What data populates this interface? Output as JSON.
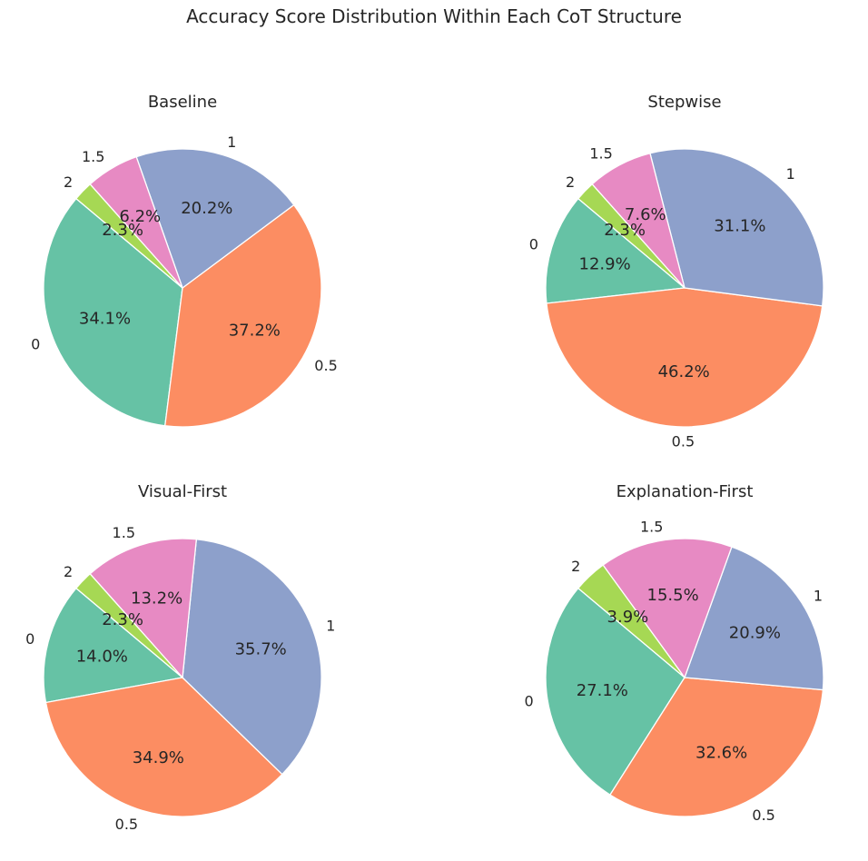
{
  "figure": {
    "title": "Accuracy Score Distribution Within Each CoT Structure"
  },
  "colors": {
    "0": "#66c2a5",
    "0.5": "#fc8d62",
    "1": "#8da0cb",
    "1.5": "#e78ac3",
    "2": "#a6d854"
  },
  "chart_data": [
    {
      "type": "pie",
      "title": "Baseline",
      "labels": [
        "0",
        "0.5",
        "1",
        "1.5",
        "2"
      ],
      "values": [
        34.1,
        37.2,
        20.2,
        6.2,
        2.3
      ],
      "value_labels": [
        "34.1%",
        "37.2%",
        "20.2%",
        "6.2%",
        "2.3%"
      ],
      "start_angle": 140
    },
    {
      "type": "pie",
      "title": "Stepwise",
      "labels": [
        "0",
        "0.5",
        "1",
        "1.5",
        "2"
      ],
      "values": [
        12.9,
        46.2,
        31.1,
        7.6,
        2.3
      ],
      "value_labels": [
        "12.9%",
        "46.2%",
        "31.1%",
        "7.6%",
        "2.3%"
      ],
      "start_angle": 140
    },
    {
      "type": "pie",
      "title": "Visual-First",
      "labels": [
        "0",
        "0.5",
        "1",
        "1.5",
        "2"
      ],
      "values": [
        14.0,
        34.9,
        35.7,
        13.2,
        2.3
      ],
      "value_labels": [
        "14.0%",
        "34.9%",
        "35.7%",
        "13.2%",
        "2.3%"
      ],
      "start_angle": 140
    },
    {
      "type": "pie",
      "title": "Explanation-First",
      "labels": [
        "0",
        "0.5",
        "1",
        "1.5",
        "2"
      ],
      "values": [
        27.1,
        32.6,
        20.9,
        15.5,
        3.9
      ],
      "value_labels": [
        "27.1%",
        "32.6%",
        "20.9%",
        "15.5%",
        "3.9%"
      ],
      "start_angle": 140
    }
  ]
}
